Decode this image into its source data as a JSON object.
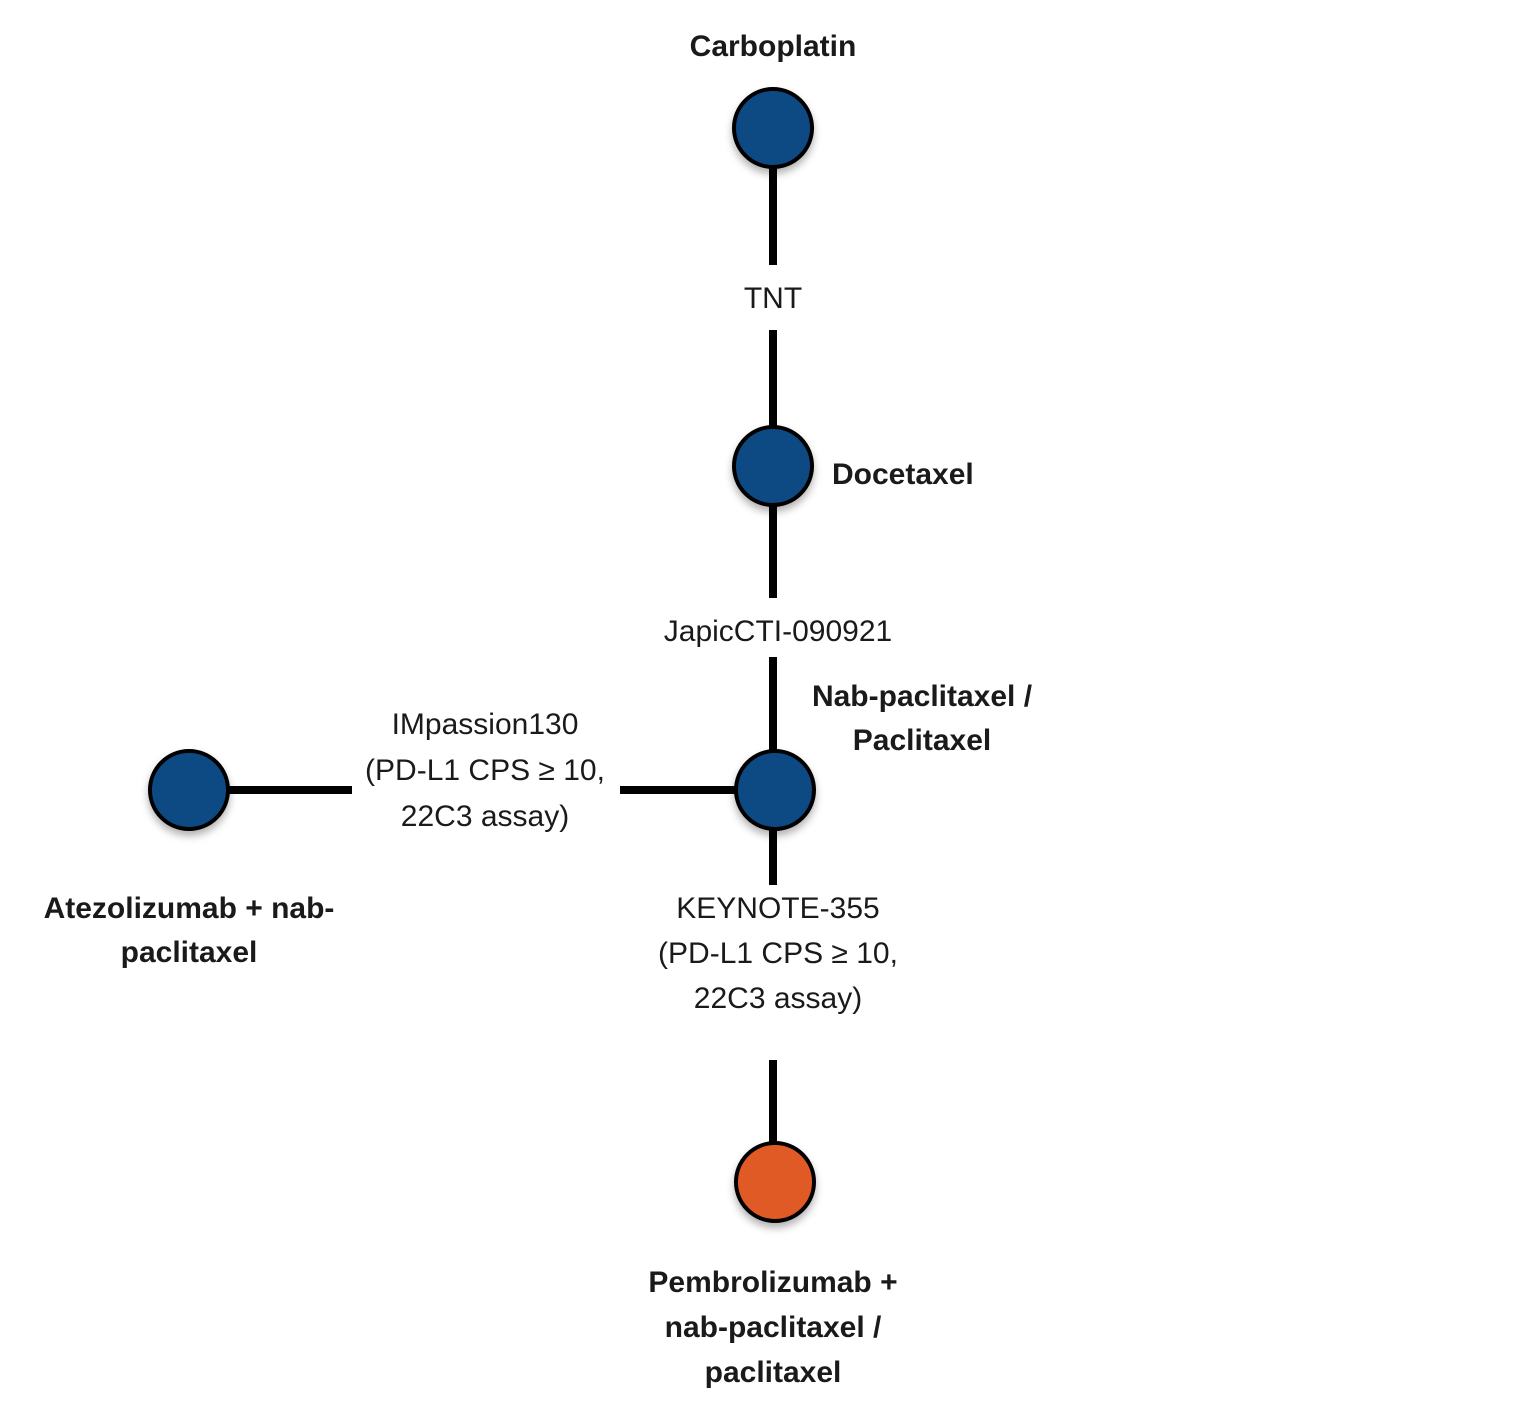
{
  "colors": {
    "comparator": "#114a82",
    "intervention": "#e05a26",
    "edge": "#000000"
  },
  "nodes": {
    "carboplatin": {
      "label": [
        "Carboplatin"
      ],
      "color": "#114a82"
    },
    "docetaxel": {
      "label": [
        "Docetaxel"
      ],
      "color": "#114a82"
    },
    "nab_paclitaxel": {
      "label": [
        "Nab-paclitaxel /",
        "Paclitaxel"
      ],
      "color": "#114a82"
    },
    "atezolizumab": {
      "label": [
        "Atezolizumab + nab-",
        "paclitaxel"
      ],
      "color": "#114a82"
    },
    "pembrolizumab": {
      "label": [
        "Pembrolizumab +",
        "nab-paclitaxel /",
        "paclitaxel"
      ],
      "color": "#e05a26"
    }
  },
  "edges": {
    "tnt": {
      "label": [
        "TNT"
      ]
    },
    "japic": {
      "label": [
        "JapicCTI-090921"
      ]
    },
    "impassion": {
      "label": [
        "IMpassion130",
        "(PD-L1 CPS ≥ 10,",
        "22C3 assay)"
      ]
    },
    "keynote": {
      "label": [
        "KEYNOTE-355",
        "(PD-L1 CPS ≥ 10,",
        "22C3 assay)"
      ]
    }
  }
}
